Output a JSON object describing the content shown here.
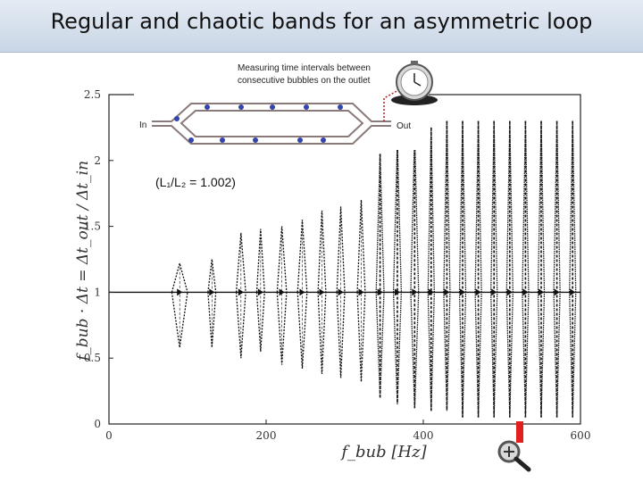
{
  "slide": {
    "title": "Regular and chaotic bands for an asymmetric loop"
  },
  "inset": {
    "caption_line1": "Measuring time intervals between",
    "caption_line2": "consecutive bubbles on the outlet",
    "inlet_label": "In",
    "outlet_label": "Out",
    "ratio_label": "(L₁/L₂ = 1.002)",
    "icons": [
      "stopwatch-icon",
      "magnifier-zoom-icon"
    ]
  },
  "chart_data": {
    "type": "scatter",
    "title": "",
    "xlabel": "f_bub [Hz]",
    "ylabel": "f_bub · Δt = Δt_out / Δt_in",
    "xlim": [
      0,
      600
    ],
    "ylim": [
      0,
      2.5
    ],
    "x_ticks": [
      "0",
      "200",
      "400",
      "600"
    ],
    "y_ticks": [
      "0",
      "0.5",
      "1",
      "1.5",
      "2",
      "2.5"
    ],
    "grid": false,
    "series_description": "bifurcating bands of normalized time intervals versus bubble frequency",
    "bands": [
      {
        "x": [
          80,
          100
        ],
        "ymin": 0.58,
        "ymax": 1.22
      },
      {
        "x": [
          126,
          136
        ],
        "ymin": 0.58,
        "ymax": 1.25
      },
      {
        "x": [
          162,
          174
        ],
        "ymin": 0.5,
        "ymax": 1.45
      },
      {
        "x": [
          188,
          198
        ],
        "ymin": 0.55,
        "ymax": 1.48
      },
      {
        "x": [
          214,
          226
        ],
        "ymin": 0.45,
        "ymax": 1.5
      },
      {
        "x": [
          240,
          252
        ],
        "ymin": 0.42,
        "ymax": 1.55
      },
      {
        "x": [
          266,
          276
        ],
        "ymin": 0.38,
        "ymax": 1.62
      },
      {
        "x": [
          290,
          300
        ],
        "ymin": 0.35,
        "ymax": 1.65
      },
      {
        "x": [
          316,
          326
        ],
        "ymin": 0.32,
        "ymax": 1.7
      },
      {
        "x": [
          340,
          350
        ],
        "ymin": 0.2,
        "ymax": 2.05
      },
      {
        "x": [
          362,
          372
        ],
        "ymin": 0.15,
        "ymax": 2.15
      },
      {
        "x": [
          384,
          394
        ],
        "ymin": 0.12,
        "ymax": 2.2
      },
      {
        "x": [
          406,
          414
        ],
        "ymin": 0.1,
        "ymax": 2.25
      },
      {
        "x": [
          426,
          434
        ],
        "ymin": 0.1,
        "ymax": 2.3
      },
      {
        "x": [
          446,
          454
        ],
        "ymin": 0.05,
        "ymax": 2.3
      },
      {
        "x": [
          466,
          474
        ],
        "ymin": 0.05,
        "ymax": 2.3
      },
      {
        "x": [
          486,
          494
        ],
        "ymin": 0.05,
        "ymax": 2.3
      },
      {
        "x": [
          506,
          514
        ],
        "ymin": 0.05,
        "ymax": 2.3
      },
      {
        "x": [
          526,
          534
        ],
        "ymin": 0.05,
        "ymax": 2.3
      },
      {
        "x": [
          546,
          554
        ],
        "ymin": 0.05,
        "ymax": 2.3
      },
      {
        "x": [
          566,
          574
        ],
        "ymin": 0.05,
        "ymax": 2.3
      },
      {
        "x": [
          586,
          594
        ],
        "ymin": 0.05,
        "ymax": 2.3
      }
    ],
    "colors": {
      "marks": "#111111",
      "highlight": "#e0201c",
      "channel": "#8a7a7a",
      "bubbles": "#3344aa"
    }
  }
}
